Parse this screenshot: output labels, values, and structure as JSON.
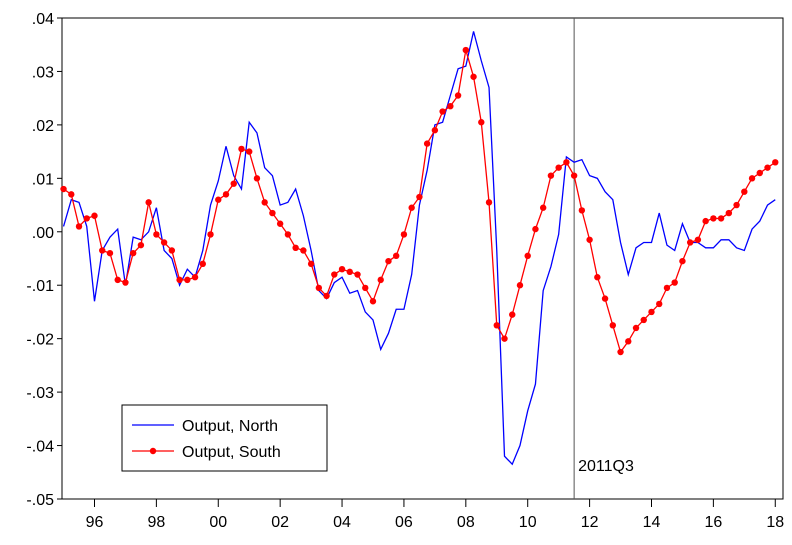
{
  "chart_data": {
    "type": "line",
    "x": [
      1995,
      1995.25,
      1995.5,
      1995.75,
      1996,
      1996.25,
      1996.5,
      1996.75,
      1997,
      1997.25,
      1997.5,
      1997.75,
      1998,
      1998.25,
      1998.5,
      1998.75,
      1999,
      1999.25,
      1999.5,
      1999.75,
      2000,
      2000.25,
      2000.5,
      2000.75,
      2001,
      2001.25,
      2001.5,
      2001.75,
      2002,
      2002.25,
      2002.5,
      2002.75,
      2003,
      2003.25,
      2003.5,
      2003.75,
      2004,
      2004.25,
      2004.5,
      2004.75,
      2005,
      2005.25,
      2005.5,
      2005.75,
      2006,
      2006.25,
      2006.5,
      2006.75,
      2007,
      2007.25,
      2007.5,
      2007.75,
      2008,
      2008.25,
      2008.5,
      2008.75,
      2009,
      2009.25,
      2009.5,
      2009.75,
      2010,
      2010.25,
      2010.5,
      2010.75,
      2011,
      2011.25,
      2011.5,
      2011.75,
      2012,
      2012.25,
      2012.5,
      2012.75,
      2013,
      2013.25,
      2013.5,
      2013.75,
      2014,
      2014.25,
      2014.5,
      2014.75,
      2015,
      2015.25,
      2015.5,
      2015.75,
      2016,
      2016.25,
      2016.5,
      2016.75,
      2017,
      2017.25,
      2017.5,
      2017.75,
      2018
    ],
    "series": [
      {
        "name": "Output, North",
        "color": "#0000ff",
        "markers": false,
        "values": [
          0.001,
          0.006,
          0.0055,
          0.001,
          -0.013,
          -0.0035,
          -0.001,
          0.0005,
          -0.01,
          -0.001,
          -0.0015,
          0.0,
          0.0045,
          -0.0035,
          -0.005,
          -0.01,
          -0.007,
          -0.0085,
          -0.0035,
          0.005,
          0.0095,
          0.016,
          0.0105,
          0.008,
          0.0205,
          0.0185,
          0.012,
          0.0105,
          0.005,
          0.0055,
          0.008,
          0.003,
          -0.0035,
          -0.011,
          -0.0125,
          -0.0095,
          -0.0085,
          -0.0115,
          -0.011,
          -0.015,
          -0.0165,
          -0.022,
          -0.019,
          -0.0145,
          -0.0145,
          -0.008,
          0.005,
          0.0115,
          0.02,
          0.0205,
          0.0255,
          0.0305,
          0.031,
          0.0375,
          0.032,
          0.027,
          -0.0035,
          -0.042,
          -0.0435,
          -0.04,
          -0.0335,
          -0.0285,
          -0.011,
          -0.0065,
          -0.0005,
          0.014,
          0.013,
          0.0135,
          0.0105,
          0.01,
          0.0075,
          0.006,
          -0.002,
          -0.008,
          -0.003,
          -0.002,
          -0.002,
          0.0035,
          -0.0025,
          -0.0035,
          0.0015,
          -0.002,
          -0.002,
          -0.003,
          -0.003,
          -0.0015,
          -0.0015,
          -0.003,
          -0.0035,
          0.0005,
          0.002,
          0.005,
          0.006
        ]
      },
      {
        "name": "Output, South",
        "color": "#ff0000",
        "markers": true,
        "values": [
          0.008,
          0.007,
          0.001,
          0.0025,
          0.003,
          -0.0035,
          -0.004,
          -0.009,
          -0.0095,
          -0.004,
          -0.0025,
          0.0055,
          -0.0005,
          -0.002,
          -0.0035,
          -0.009,
          -0.009,
          -0.0085,
          -0.006,
          -0.0005,
          0.006,
          0.007,
          0.009,
          0.0155,
          0.015,
          0.01,
          0.0055,
          0.0035,
          0.0015,
          -0.0005,
          -0.003,
          -0.0035,
          -0.006,
          -0.0105,
          -0.012,
          -0.008,
          -0.007,
          -0.0075,
          -0.008,
          -0.0105,
          -0.013,
          -0.009,
          -0.0055,
          -0.0045,
          -0.0005,
          0.0045,
          0.0065,
          0.0165,
          0.019,
          0.0225,
          0.0235,
          0.0255,
          0.034,
          0.029,
          0.0205,
          0.0055,
          -0.0175,
          -0.02,
          -0.0155,
          -0.01,
          -0.0045,
          0.0005,
          0.0045,
          0.0105,
          0.012,
          0.013,
          0.0105,
          0.004,
          -0.0015,
          -0.0085,
          -0.0125,
          -0.0175,
          -0.0225,
          -0.0205,
          -0.018,
          -0.0165,
          -0.015,
          -0.0135,
          -0.0105,
          -0.0095,
          -0.0055,
          -0.002,
          -0.0015,
          0.002,
          0.0025,
          0.0025,
          0.0035,
          0.005,
          0.0075,
          0.01,
          0.011,
          0.012,
          0.013
        ]
      }
    ],
    "xlim": [
      1994.95,
      2018.25
    ],
    "xticks": [
      {
        "value": 1996,
        "label": "96"
      },
      {
        "value": 1998,
        "label": "98"
      },
      {
        "value": 2000,
        "label": "00"
      },
      {
        "value": 2002,
        "label": "02"
      },
      {
        "value": 2004,
        "label": "04"
      },
      {
        "value": 2006,
        "label": "06"
      },
      {
        "value": 2008,
        "label": "08"
      },
      {
        "value": 2010,
        "label": "10"
      },
      {
        "value": 2012,
        "label": "12"
      },
      {
        "value": 2014,
        "label": "14"
      },
      {
        "value": 2016,
        "label": "16"
      },
      {
        "value": 2018,
        "label": "18"
      }
    ],
    "ylim": [
      -0.05,
      0.04
    ],
    "yticks": [
      {
        "value": -0.05,
        "label": "-.05"
      },
      {
        "value": -0.04,
        "label": "-.04"
      },
      {
        "value": -0.03,
        "label": "-.03"
      },
      {
        "value": -0.02,
        "label": "-.02"
      },
      {
        "value": -0.01,
        "label": "-.01"
      },
      {
        "value": 0,
        "label": ".00"
      },
      {
        "value": 0.01,
        "label": ".01"
      },
      {
        "value": 0.02,
        "label": ".02"
      },
      {
        "value": 0.03,
        "label": ".03"
      },
      {
        "value": 0.04,
        "label": ".04"
      }
    ],
    "vline": {
      "x": 2011.5,
      "label": "2011Q3"
    },
    "legend": "lower left"
  }
}
